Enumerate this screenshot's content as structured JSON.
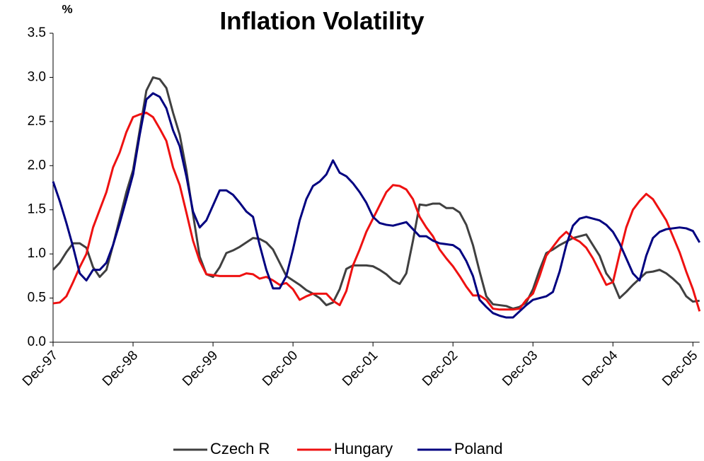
{
  "chart_data": {
    "type": "line",
    "title": "Inflation Volatility",
    "y_label": "%",
    "categories": [
      "Dec-97",
      null,
      null,
      null,
      null,
      null,
      null,
      null,
      null,
      null,
      null,
      null,
      "Dec-98",
      null,
      null,
      null,
      null,
      null,
      null,
      null,
      null,
      null,
      null,
      null,
      "Dec-99",
      null,
      null,
      null,
      null,
      null,
      null,
      null,
      null,
      null,
      null,
      null,
      "Dec-00",
      null,
      null,
      null,
      null,
      null,
      null,
      null,
      null,
      null,
      null,
      null,
      "Dec-01",
      null,
      null,
      null,
      null,
      null,
      null,
      null,
      null,
      null,
      null,
      null,
      "Dec-02",
      null,
      null,
      null,
      null,
      null,
      null,
      null,
      null,
      null,
      null,
      null,
      "Dec-03",
      null,
      null,
      null,
      null,
      null,
      null,
      null,
      null,
      null,
      null,
      null,
      "Dec-04",
      null,
      null,
      null,
      null,
      null,
      null,
      null,
      null,
      null,
      null,
      null,
      "Dec-05",
      null
    ],
    "series": [
      {
        "name": "Czech R",
        "color": "#404040",
        "values": [
          0.82,
          0.9,
          1.02,
          1.12,
          1.12,
          1.07,
          0.85,
          0.74,
          0.82,
          1.1,
          1.4,
          1.7,
          1.95,
          2.4,
          2.85,
          3.0,
          2.98,
          2.88,
          2.6,
          2.35,
          1.95,
          1.45,
          0.97,
          0.77,
          0.74,
          0.85,
          1.01,
          1.04,
          1.08,
          1.13,
          1.18,
          1.17,
          1.13,
          1.05,
          0.9,
          0.75,
          0.7,
          0.65,
          0.59,
          0.55,
          0.5,
          0.42,
          0.45,
          0.6,
          0.83,
          0.87,
          0.87,
          0.87,
          0.86,
          0.82,
          0.77,
          0.7,
          0.66,
          0.78,
          1.15,
          1.56,
          1.55,
          1.57,
          1.57,
          1.52,
          1.52,
          1.47,
          1.33,
          1.1,
          0.8,
          0.52,
          0.43,
          0.42,
          0.41,
          0.38,
          0.4,
          0.45,
          0.6,
          0.82,
          1.01,
          1.05,
          1.1,
          1.14,
          1.18,
          1.2,
          1.22,
          1.1,
          0.98,
          0.78,
          0.68,
          0.5,
          0.57,
          0.65,
          0.72,
          0.79,
          0.8,
          0.82,
          0.78,
          0.72,
          0.65,
          0.52,
          0.46,
          0.47
        ]
      },
      {
        "name": "Hungary",
        "color": "#ee1111",
        "values": [
          0.44,
          0.45,
          0.52,
          0.68,
          0.85,
          1.0,
          1.3,
          1.5,
          1.7,
          1.98,
          2.15,
          2.38,
          2.55,
          2.58,
          2.6,
          2.55,
          2.42,
          2.28,
          1.98,
          1.78,
          1.47,
          1.15,
          0.92,
          0.77,
          0.76,
          0.75,
          0.75,
          0.75,
          0.75,
          0.78,
          0.77,
          0.72,
          0.74,
          0.7,
          0.65,
          0.67,
          0.6,
          0.48,
          0.52,
          0.55,
          0.55,
          0.55,
          0.47,
          0.42,
          0.58,
          0.87,
          1.05,
          1.25,
          1.4,
          1.55,
          1.7,
          1.78,
          1.77,
          1.73,
          1.62,
          1.42,
          1.3,
          1.2,
          1.05,
          0.95,
          0.86,
          0.75,
          0.63,
          0.53,
          0.53,
          0.48,
          0.38,
          0.37,
          0.37,
          0.37,
          0.38,
          0.48,
          0.55,
          0.75,
          0.98,
          1.08,
          1.18,
          1.25,
          1.18,
          1.14,
          1.07,
          0.95,
          0.8,
          0.65,
          0.68,
          1.0,
          1.3,
          1.5,
          1.6,
          1.68,
          1.62,
          1.5,
          1.38,
          1.2,
          1.02,
          0.8,
          0.6,
          0.35
        ]
      },
      {
        "name": "Poland",
        "color": "#000080",
        "values": [
          1.82,
          1.6,
          1.35,
          1.08,
          0.78,
          0.7,
          0.82,
          0.82,
          0.9,
          1.1,
          1.35,
          1.62,
          1.9,
          2.35,
          2.75,
          2.82,
          2.78,
          2.65,
          2.4,
          2.22,
          1.88,
          1.48,
          1.3,
          1.38,
          1.55,
          1.72,
          1.72,
          1.67,
          1.58,
          1.48,
          1.42,
          1.1,
          0.82,
          0.61,
          0.61,
          0.75,
          1.05,
          1.38,
          1.62,
          1.77,
          1.82,
          1.9,
          2.06,
          1.92,
          1.88,
          1.8,
          1.7,
          1.58,
          1.42,
          1.35,
          1.33,
          1.32,
          1.34,
          1.36,
          1.28,
          1.2,
          1.2,
          1.15,
          1.12,
          1.11,
          1.1,
          1.05,
          0.92,
          0.75,
          0.48,
          0.4,
          0.33,
          0.3,
          0.28,
          0.28,
          0.35,
          0.42,
          0.48,
          0.5,
          0.52,
          0.57,
          0.8,
          1.1,
          1.32,
          1.4,
          1.42,
          1.4,
          1.38,
          1.33,
          1.25,
          1.12,
          0.95,
          0.78,
          0.7,
          0.98,
          1.18,
          1.25,
          1.28,
          1.29,
          1.3,
          1.29,
          1.26,
          1.13
        ]
      }
    ],
    "ylim": [
      0,
      3.5
    ],
    "yticks": [
      {
        "value": 0,
        "label": "0.0"
      },
      {
        "value": 0.5,
        "label": "0.5"
      },
      {
        "value": 1,
        "label": "1.0"
      },
      {
        "value": 1.5,
        "label": "1.5"
      },
      {
        "value": 2,
        "label": "2.0"
      },
      {
        "value": 2.5,
        "label": "2.5"
      },
      {
        "value": 3,
        "label": "3.0"
      },
      {
        "value": 3.5,
        "label": "3.5"
      }
    ],
    "legend": "bottom"
  }
}
